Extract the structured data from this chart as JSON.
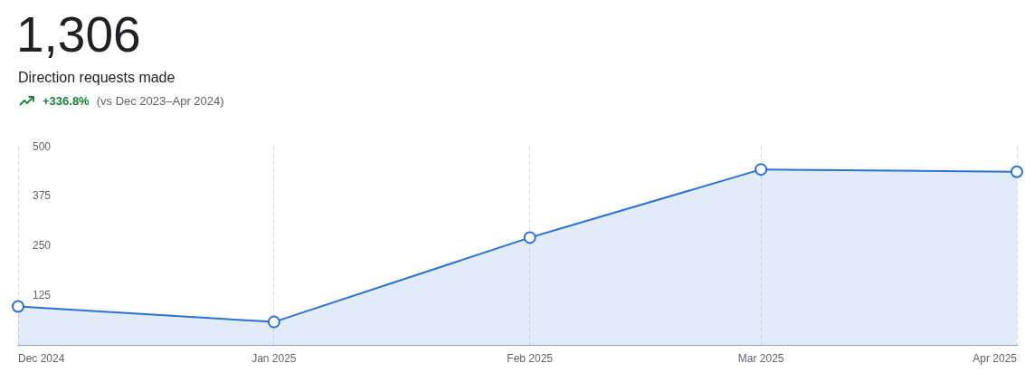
{
  "chart_data": {
    "type": "area",
    "title": "1,306",
    "subtitle": "Direction requests made",
    "annotations": [
      "+336.8%",
      "(vs Dec 2023–Apr 2024)"
    ],
    "x": [
      "2024-12",
      "2025-01",
      "2025-02",
      "2025-03",
      "2025-04"
    ],
    "values": [
      97,
      58,
      271,
      443,
      437
    ],
    "color": "#2b70d8",
    "xlim": [
      "2024-12",
      "2025-04"
    ],
    "xticks": [
      {
        "value": "2024-12",
        "label": "Dec 2024"
      },
      {
        "value": "2025-01",
        "label": "Jan 2025"
      },
      {
        "value": "2025-02",
        "label": "Feb 2025"
      },
      {
        "value": "2025-03",
        "label": "Mar 2025"
      },
      {
        "value": "2025-04",
        "label": "Apr 2025"
      }
    ],
    "ylim": [
      0,
      500
    ],
    "yticks": [
      125,
      250,
      375,
      500
    ],
    "grid": "x",
    "marker": "circle"
  }
}
